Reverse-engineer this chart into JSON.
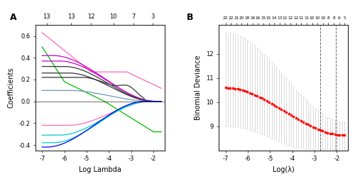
{
  "panel_A": {
    "title": "A",
    "xlabel": "Log Lambda",
    "ylabel": "Coefficients",
    "xlim": [
      -7.3,
      -1.5
    ],
    "ylim": [
      -0.45,
      0.7
    ],
    "top_axis_ticks": [
      -6.8,
      -5.7,
      -4.8,
      -3.8,
      -2.9,
      -2.05
    ],
    "top_axis_labels": [
      "13",
      "13",
      "12",
      "10",
      "7",
      "3"
    ],
    "x_ticks": [
      -7,
      -6,
      -5,
      -4,
      -3,
      -2
    ],
    "x_tick_labels": [
      "-7",
      "-6",
      "-5",
      "-4",
      "-3",
      "-2"
    ],
    "y_ticks": [
      -0.4,
      -0.2,
      0.0,
      0.2,
      0.4,
      0.6
    ]
  },
  "panel_B": {
    "title": "B",
    "xlabel": "Log(λ)",
    "ylabel": "Binomial Deviance",
    "xlim": [
      -7.3,
      -1.5
    ],
    "ylim": [
      8.0,
      13.2
    ],
    "top_axis_labels": [
      "22",
      "22",
      "21",
      "20",
      "18",
      "16",
      "16",
      "15",
      "15",
      "14",
      "13",
      "12",
      "12",
      "12",
      "11",
      "11",
      "10",
      "10",
      "10",
      "8",
      "8",
      "6",
      "5"
    ],
    "x_ticks": [
      -7,
      -6,
      -5,
      -4,
      -3,
      -2
    ],
    "x_tick_labels": [
      "-7",
      "-6",
      "-5",
      "-4",
      "-3",
      "-2"
    ],
    "y_ticks": [
      9,
      10,
      11,
      12
    ],
    "vline1_x": -2.75,
    "vline2_x": -2.05,
    "dot_color": "#FF0000",
    "error_color": "#CCCCCC"
  }
}
